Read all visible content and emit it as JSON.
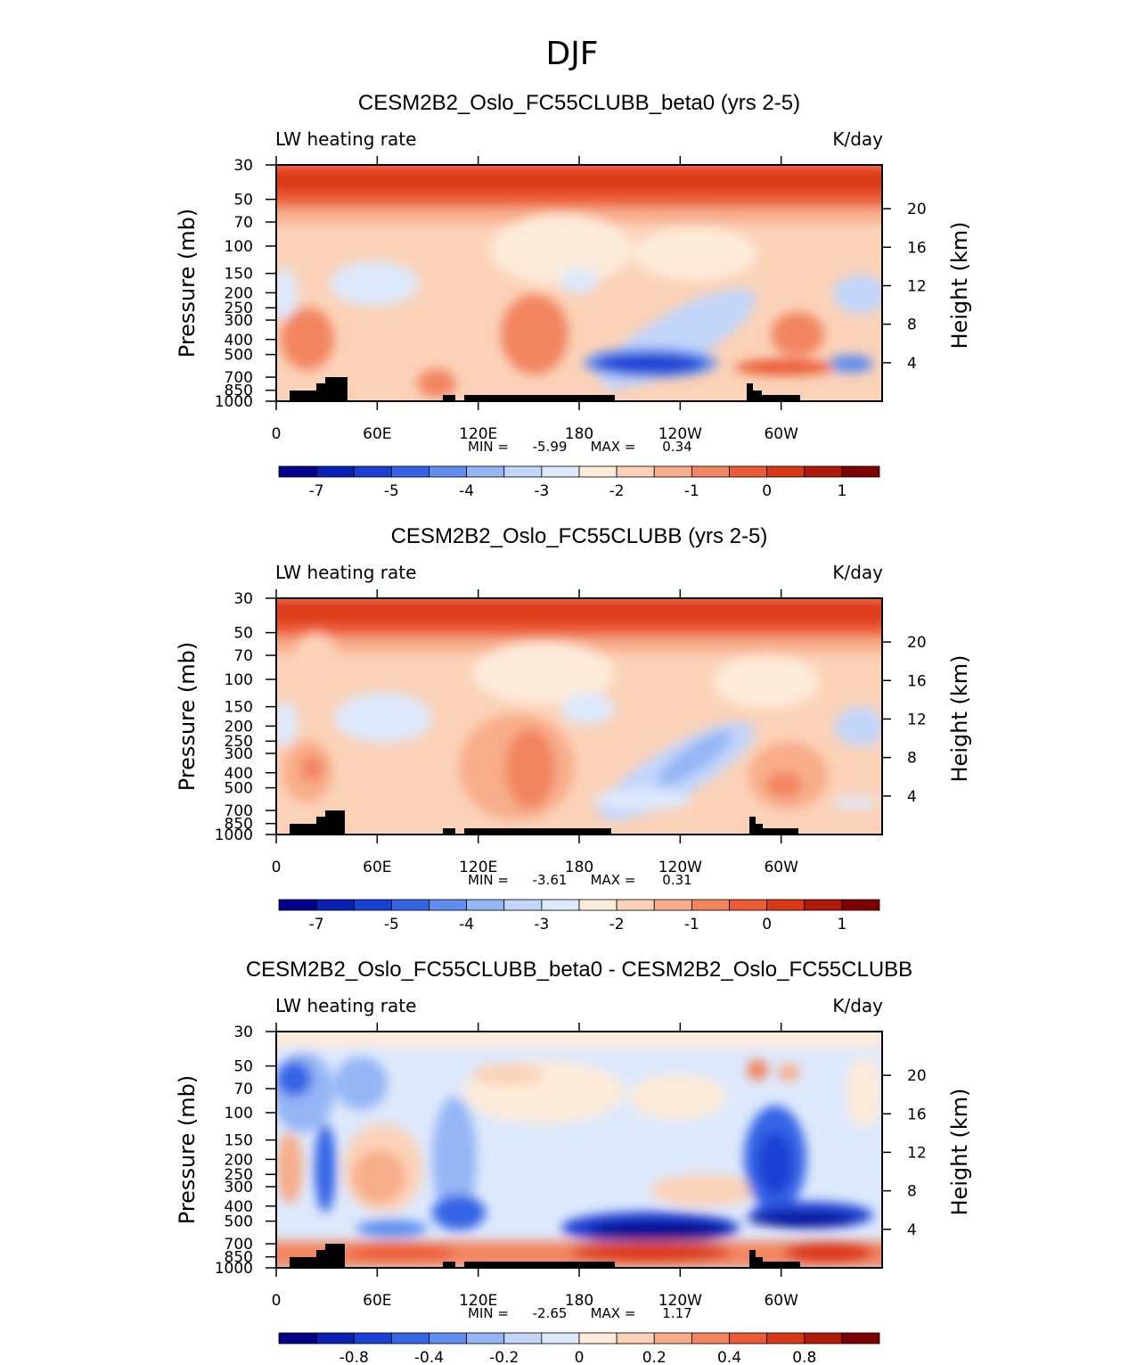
{
  "figure_title": "DJF",
  "chart_data": [
    {
      "type": "heatmap",
      "title": "CESM2B2_Oslo_FC55CLUBB_beta0 (yrs 2-5)",
      "left_label": "LW heating rate",
      "right_label": "K/day",
      "ylabel": "Pressure (mb)",
      "ylabel_right": "Height (km)",
      "pressure_ticks": [
        "30",
        "50",
        "70",
        "100",
        "150",
        "200",
        "250",
        "300",
        "400",
        "500",
        "700",
        "850",
        "1000"
      ],
      "height_ticks": [
        "20",
        "16",
        "12",
        "8",
        "4"
      ],
      "x_ticks": [
        "0",
        "60E",
        "120E",
        "180",
        "120W",
        "60W"
      ],
      "stats": {
        "min_label": "MIN =",
        "min": "-5.99",
        "max_label": "MAX =",
        "max": "0.34"
      },
      "colorbar_labels": [
        "-7",
        "-5",
        "-4",
        "-3",
        "-2",
        "-1",
        "0",
        "1"
      ]
    },
    {
      "type": "heatmap",
      "title": "CESM2B2_Oslo_FC55CLUBB (yrs 2-5)",
      "left_label": "LW heating rate",
      "right_label": "K/day",
      "ylabel": "Pressure (mb)",
      "ylabel_right": "Height (km)",
      "pressure_ticks": [
        "30",
        "50",
        "70",
        "100",
        "150",
        "200",
        "250",
        "300",
        "400",
        "500",
        "700",
        "850",
        "1000"
      ],
      "height_ticks": [
        "20",
        "16",
        "12",
        "8",
        "4"
      ],
      "x_ticks": [
        "0",
        "60E",
        "120E",
        "180",
        "120W",
        "60W"
      ],
      "stats": {
        "min_label": "MIN =",
        "min": "-3.61",
        "max_label": "MAX =",
        "max": "0.31"
      },
      "colorbar_labels": [
        "-7",
        "-5",
        "-4",
        "-3",
        "-2",
        "-1",
        "0",
        "1"
      ]
    },
    {
      "type": "heatmap",
      "title": "CESM2B2_Oslo_FC55CLUBB_beta0 - CESM2B2_Oslo_FC55CLUBB",
      "left_label": "LW heating rate",
      "right_label": "K/day",
      "ylabel": "Pressure (mb)",
      "ylabel_right": "Height (km)",
      "pressure_ticks": [
        "30",
        "50",
        "70",
        "100",
        "150",
        "200",
        "250",
        "300",
        "400",
        "500",
        "700",
        "850",
        "1000"
      ],
      "height_ticks": [
        "20",
        "16",
        "12",
        "8",
        "4"
      ],
      "x_ticks": [
        "0",
        "60E",
        "120E",
        "180",
        "120W",
        "60W"
      ],
      "stats": {
        "min_label": "MIN =",
        "min": "-2.65",
        "max_label": "MAX =",
        "max": "1.17"
      },
      "colorbar_labels": [
        "-0.8",
        "-0.4",
        "-0.2",
        "0",
        "0.2",
        "0.4",
        "0.8"
      ]
    }
  ],
  "colors": {
    "palette": [
      "#00008b",
      "#0a1fb4",
      "#1a3fd4",
      "#3565e6",
      "#5f8ef0",
      "#94b6f5",
      "#c2d6fa",
      "#dde9fc",
      "#fdebd9",
      "#fbd2b8",
      "#f8ad8a",
      "#f28560",
      "#ec5b35",
      "#da3718",
      "#b01a0a",
      "#7f0000"
    ]
  }
}
